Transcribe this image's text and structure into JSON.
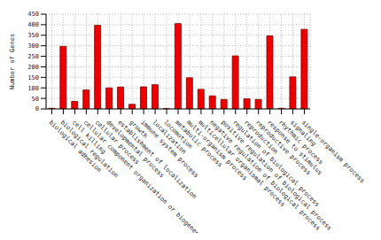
{
  "chart_data": {
    "type": "bar",
    "y_label": "Number of Genes",
    "categories": [
      "biological adhesion",
      "biological regulation",
      "cell killing",
      "cellular component organization or biogenesis",
      "cellular process",
      "developmental process",
      "establishment of localization",
      "growth",
      "immune system process",
      "localization",
      "locomotion",
      "metabolic process",
      "multi-organism process",
      "multicellular organismal process",
      "negative regulation of biological process",
      "positive regulation of biological process",
      "regulation of biological process",
      "reproduction",
      "reproductive process",
      "response to stimulus",
      "rhythmic process",
      "signaling",
      "single-organism process"
    ],
    "values": [
      3,
      297,
      36,
      90,
      397,
      100,
      104,
      22,
      105,
      115,
      2,
      405,
      148,
      93,
      62,
      45,
      252,
      48,
      45,
      347,
      3,
      152,
      378
    ],
    "color": "#ee0000",
    "ylim": [
      0,
      450
    ],
    "yticks": [
      0,
      50,
      100,
      150,
      200,
      250,
      300,
      350,
      400,
      450
    ],
    "grid": true
  }
}
